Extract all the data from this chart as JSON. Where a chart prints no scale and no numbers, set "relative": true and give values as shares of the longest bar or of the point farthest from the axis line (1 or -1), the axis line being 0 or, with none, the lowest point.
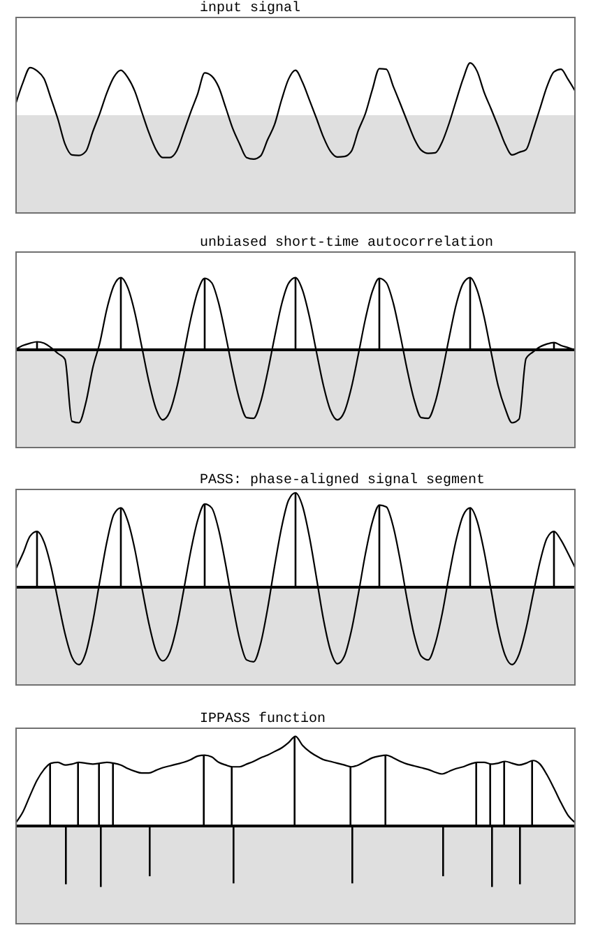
{
  "chart_data": [
    {
      "type": "line",
      "title": "input signal",
      "relative": true,
      "categories": [
        null,
        null,
        null,
        null,
        null,
        null,
        null,
        null,
        null,
        null,
        null,
        null,
        null,
        null,
        null,
        null,
        null,
        null,
        null,
        null,
        null,
        null,
        null,
        null,
        null,
        null,
        null,
        null,
        null,
        null,
        null,
        null,
        null,
        null,
        null,
        null,
        null,
        null,
        null,
        null,
        null,
        null,
        null,
        null,
        null,
        null,
        null,
        null,
        null,
        null,
        null,
        null,
        null,
        null,
        null,
        null,
        null,
        null,
        null,
        null,
        null,
        null,
        null,
        null,
        null,
        null,
        null,
        null,
        null,
        null,
        null,
        null,
        null,
        null,
        null,
        null,
        null,
        null,
        null,
        null,
        null
      ],
      "series": [
        {
          "color": "#000000",
          "values": [
            0.24,
            0.63,
            0.91,
            0.85,
            0.7,
            0.32,
            -0.08,
            -0.55,
            -0.76,
            -0.77,
            -0.69,
            -0.31,
            0.04,
            0.43,
            0.73,
            0.86,
            0.72,
            0.46,
            0.06,
            -0.33,
            -0.65,
            -0.81,
            -0.81,
            -0.68,
            -0.32,
            0.06,
            0.41,
            0.81,
            0.75,
            0.54,
            0.15,
            -0.25,
            -0.55,
            -0.81,
            -0.84,
            -0.78,
            -0.47,
            -0.18,
            0.29,
            0.69,
            0.86,
            0.63,
            0.29,
            -0.06,
            -0.42,
            -0.69,
            -0.8,
            -0.79,
            -0.69,
            -0.29,
            0.03,
            0.49,
            0.89,
            0.88,
            0.55,
            0.22,
            -0.12,
            -0.45,
            -0.67,
            -0.73,
            -0.72,
            -0.51,
            -0.15,
            0.28,
            0.7,
            1,
            0.84,
            0.44,
            0.12,
            -0.21,
            -0.55,
            -0.76,
            -0.71,
            -0.66,
            -0.29,
            0.13,
            0.55,
            0.83,
            0.88,
            0.69,
            0.47
          ]
        }
      ]
    },
    {
      "type": "line",
      "title": "unbiased short-time autocorrelation",
      "relative": true,
      "categories": [
        null,
        null,
        null,
        null,
        null,
        null,
        null,
        null,
        null,
        null,
        null,
        null,
        null,
        null,
        null,
        null,
        null,
        null,
        null,
        null,
        null,
        null,
        null,
        null,
        null,
        null,
        null,
        null,
        null,
        null,
        null,
        null,
        null,
        null,
        null,
        null,
        null,
        null,
        null,
        null,
        null,
        null,
        null,
        null,
        null,
        null,
        null,
        null,
        null,
        null,
        null,
        null,
        null,
        null,
        null,
        null,
        null,
        null,
        null,
        null,
        null,
        null,
        null,
        null,
        null,
        null,
        null,
        null,
        null,
        null,
        null,
        null,
        null,
        null,
        null,
        null,
        null,
        null,
        null,
        null,
        null
      ],
      "ref_lines": [
        {
          "axis": "y",
          "value": 0,
          "color": "#000000"
        }
      ],
      "series": [
        {
          "color": "#000000",
          "values": [
            0.01,
            0.06,
            0.09,
            0.11,
            0.09,
            0.03,
            -0.05,
            -0.13,
            -0.98,
            -1,
            -0.72,
            -0.24,
            0.1,
            0.56,
            0.88,
            0.99,
            0.85,
            0.51,
            0.04,
            -0.43,
            -0.8,
            -0.96,
            -0.85,
            -0.52,
            -0.06,
            0.42,
            0.8,
            0.98,
            0.92,
            0.64,
            0.2,
            -0.28,
            -0.69,
            -0.93,
            -0.94,
            -0.72,
            -0.31,
            0.17,
            0.62,
            0.91,
            0.99,
            0.82,
            0.45,
            -0.03,
            -0.49,
            -0.83,
            -0.96,
            -0.85,
            -0.52,
            -0.06,
            0.42,
            0.8,
            0.98,
            0.92,
            0.64,
            0.2,
            -0.28,
            -0.69,
            -0.93,
            -0.94,
            -0.72,
            -0.31,
            0.17,
            0.62,
            0.91,
            0.99,
            0.82,
            0.45,
            -0.03,
            -0.49,
            -0.8,
            -1,
            -0.95,
            -0.12,
            -0.03,
            0.04,
            0.08,
            0.1,
            0.06,
            0.03,
            0
          ]
        },
        {
          "type": "bar",
          "color": "#000000",
          "values": [
            null,
            null,
            null,
            0.11,
            null,
            null,
            null,
            null,
            null,
            null,
            null,
            null,
            null,
            null,
            null,
            0.99,
            null,
            null,
            null,
            null,
            null,
            null,
            null,
            null,
            null,
            null,
            null,
            0.98,
            null,
            null,
            null,
            null,
            null,
            null,
            null,
            null,
            null,
            null,
            null,
            null,
            0.99,
            null,
            null,
            null,
            null,
            null,
            null,
            null,
            null,
            null,
            null,
            null,
            0.98,
            null,
            null,
            null,
            null,
            null,
            null,
            null,
            null,
            null,
            null,
            null,
            null,
            0.99,
            null,
            null,
            null,
            null,
            null,
            null,
            null,
            null,
            null,
            null,
            null,
            0.1,
            null,
            null,
            null
          ]
        }
      ]
    },
    {
      "type": "line",
      "title": "PASS: phase-aligned signal segment",
      "relative": true,
      "categories": [
        null,
        null,
        null,
        null,
        null,
        null,
        null,
        null,
        null,
        null,
        null,
        null,
        null,
        null,
        null,
        null,
        null,
        null,
        null,
        null,
        null,
        null,
        null,
        null,
        null,
        null,
        null,
        null,
        null,
        null,
        null,
        null,
        null,
        null,
        null,
        null,
        null,
        null,
        null,
        null,
        null,
        null,
        null,
        null,
        null,
        null,
        null,
        null,
        null,
        null,
        null,
        null,
        null,
        null,
        null,
        null,
        null,
        null,
        null,
        null,
        null,
        null,
        null,
        null,
        null,
        null,
        null,
        null,
        null,
        null,
        null,
        null,
        null,
        null,
        null,
        null,
        null,
        null,
        null,
        null,
        null
      ],
      "ref_lines": [
        {
          "axis": "y",
          "value": 0,
          "color": "#000000"
        }
      ],
      "series": [
        {
          "color": "#000000",
          "values": [
            0.2,
            0.36,
            0.54,
            0.59,
            0.48,
            0.22,
            -0.14,
            -0.49,
            -0.74,
            -0.82,
            -0.69,
            -0.36,
            0.07,
            0.48,
            0.77,
            0.84,
            0.7,
            0.4,
            0,
            -0.38,
            -0.67,
            -0.78,
            -0.69,
            -0.42,
            -0.03,
            0.38,
            0.71,
            0.88,
            0.84,
            0.61,
            0.24,
            -0.18,
            -0.55,
            -0.77,
            -0.79,
            -0.6,
            -0.23,
            0.22,
            0.63,
            0.92,
            1,
            0.86,
            0.53,
            0.1,
            -0.34,
            -0.67,
            -0.81,
            -0.73,
            -0.46,
            -0.07,
            0.35,
            0.69,
            0.87,
            0.85,
            0.64,
            0.28,
            -0.14,
            -0.51,
            -0.73,
            -0.77,
            -0.6,
            -0.28,
            0.13,
            0.5,
            0.76,
            0.84,
            0.7,
            0.38,
            -0.03,
            -0.44,
            -0.72,
            -0.82,
            -0.71,
            -0.44,
            -0.08,
            0.27,
            0.52,
            0.59,
            0.5,
            0.36,
            0.21
          ]
        },
        {
          "type": "bar",
          "color": "#000000",
          "values": [
            null,
            null,
            null,
            0.59,
            null,
            null,
            null,
            null,
            null,
            null,
            null,
            null,
            null,
            null,
            null,
            0.84,
            null,
            null,
            null,
            null,
            null,
            null,
            null,
            null,
            null,
            null,
            null,
            0.88,
            null,
            null,
            null,
            null,
            null,
            null,
            null,
            null,
            null,
            null,
            null,
            null,
            1,
            null,
            null,
            null,
            null,
            null,
            null,
            null,
            null,
            null,
            null,
            null,
            0.87,
            null,
            null,
            null,
            null,
            null,
            null,
            null,
            null,
            null,
            null,
            null,
            null,
            0.84,
            null,
            null,
            null,
            null,
            null,
            null,
            null,
            null,
            null,
            null,
            null,
            0.59,
            null,
            null,
            null
          ]
        }
      ]
    },
    {
      "type": "line",
      "title": "IPPASS function",
      "relative": true,
      "categories": [
        null,
        null,
        null,
        null,
        null,
        null,
        null,
        null,
        null,
        null,
        null,
        null,
        null,
        null,
        null,
        null,
        null,
        null,
        null,
        null,
        null,
        null,
        null,
        null,
        null,
        null,
        null,
        null,
        null,
        null,
        null,
        null,
        null,
        null,
        null,
        null,
        null,
        null,
        null,
        null,
        null,
        null,
        null,
        null,
        null,
        null,
        null,
        null,
        null,
        null,
        null,
        null,
        null,
        null,
        null,
        null,
        null,
        null,
        null,
        null,
        null,
        null,
        null,
        null,
        null,
        null,
        null,
        null,
        null,
        null,
        null,
        null,
        null,
        null,
        null,
        null,
        null,
        null,
        null,
        null,
        null
      ],
      "ref_lines": [
        {
          "axis": "y",
          "value": 0,
          "color": "#000000"
        }
      ],
      "series": [
        {
          "color": "#000000",
          "values": [
            0.04,
            0.16,
            0.34,
            0.51,
            0.63,
            0.7,
            0.71,
            0.68,
            0.69,
            0.71,
            0.7,
            0.69,
            0.7,
            0.71,
            0.7,
            0.68,
            0.64,
            0.61,
            0.59,
            0.59,
            0.62,
            0.65,
            0.67,
            0.69,
            0.71,
            0.74,
            0.78,
            0.79,
            0.77,
            0.71,
            0.68,
            0.66,
            0.66,
            0.69,
            0.72,
            0.76,
            0.79,
            0.83,
            0.87,
            0.93,
            1,
            0.9,
            0.83,
            0.78,
            0.74,
            0.72,
            0.7,
            0.68,
            0.66,
            0.68,
            0.72,
            0.76,
            0.78,
            0.79,
            0.76,
            0.72,
            0.69,
            0.67,
            0.65,
            0.63,
            0.6,
            0.58,
            0.61,
            0.64,
            0.66,
            0.69,
            0.71,
            0.71,
            0.69,
            0.7,
            0.72,
            0.7,
            0.68,
            0.7,
            0.73,
            0.69,
            0.57,
            0.42,
            0.26,
            0.12,
            0.04
          ]
        },
        {
          "type": "bar",
          "color": "#000000",
          "values": [
            null,
            null,
            null,
            null,
            null,
            0.7,
            null,
            null,
            null,
            0.71,
            null,
            null,
            0.7,
            null,
            0.7,
            null,
            null,
            null,
            null,
            null,
            null,
            null,
            null,
            null,
            null,
            null,
            null,
            0.79,
            null,
            null,
            null,
            0.66,
            null,
            null,
            null,
            null,
            null,
            null,
            null,
            null,
            1,
            null,
            null,
            null,
            null,
            null,
            null,
            null,
            0.66,
            null,
            null,
            null,
            null,
            0.79,
            null,
            null,
            null,
            null,
            null,
            null,
            null,
            null,
            null,
            null,
            null,
            null,
            0.71,
            null,
            0.69,
            null,
            0.72,
            null,
            null,
            null,
            0.73,
            null,
            null,
            null,
            null,
            null,
            null
          ]
        },
        {
          "type": "bar",
          "color": "#000000",
          "values": [
            null,
            null,
            null,
            null,
            null,
            null,
            null,
            -0.65,
            null,
            null,
            null,
            null,
            -0.68,
            null,
            null,
            null,
            null,
            null,
            null,
            -0.56,
            null,
            null,
            null,
            null,
            null,
            null,
            null,
            null,
            null,
            null,
            null,
            -0.64,
            null,
            null,
            null,
            null,
            null,
            null,
            null,
            null,
            null,
            null,
            null,
            null,
            null,
            null,
            null,
            null,
            -0.64,
            null,
            null,
            null,
            null,
            null,
            null,
            null,
            null,
            null,
            null,
            null,
            null,
            -0.56,
            null,
            null,
            null,
            null,
            null,
            null,
            -0.68,
            null,
            null,
            null,
            -0.65,
            null,
            null,
            null,
            null,
            null,
            null,
            null,
            null
          ]
        }
      ]
    }
  ]
}
